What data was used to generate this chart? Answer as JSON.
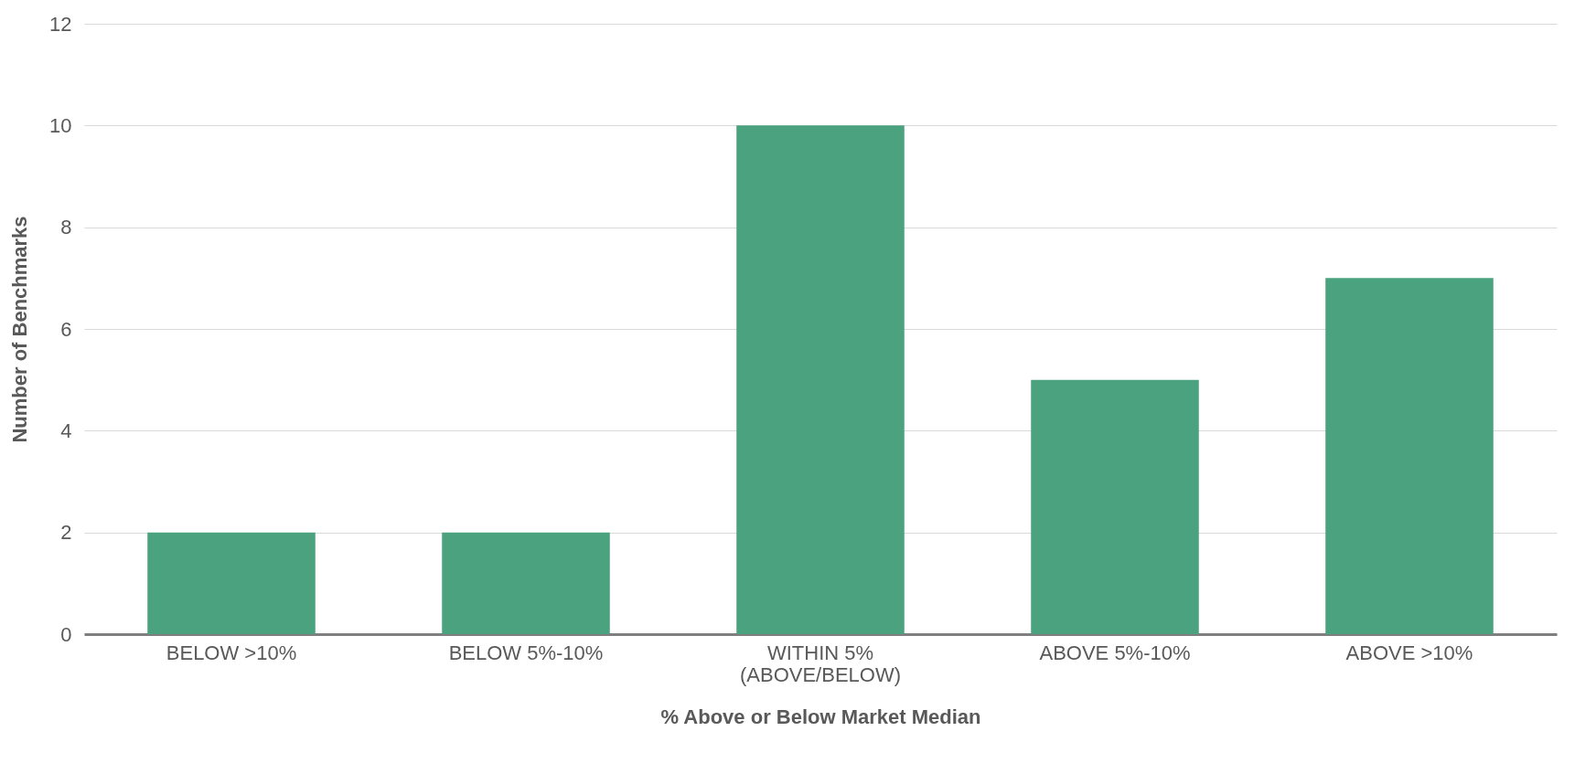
{
  "chart_data": {
    "type": "bar",
    "categories": [
      "BELOW >10%",
      "BELOW 5%-10%",
      "WITHIN 5%\n(ABOVE/BELOW)",
      "ABOVE  5%-10%",
      "ABOVE >10%"
    ],
    "values": [
      2,
      2,
      10,
      5,
      7
    ],
    "color": "#4aa37e",
    "xlabel": "% Above or Below Market Median",
    "ylabel": "Number of Benchmarks",
    "ylim": [
      0,
      12
    ],
    "yticks": [
      0,
      2,
      4,
      6,
      8,
      10,
      12
    ],
    "grid": "y"
  }
}
